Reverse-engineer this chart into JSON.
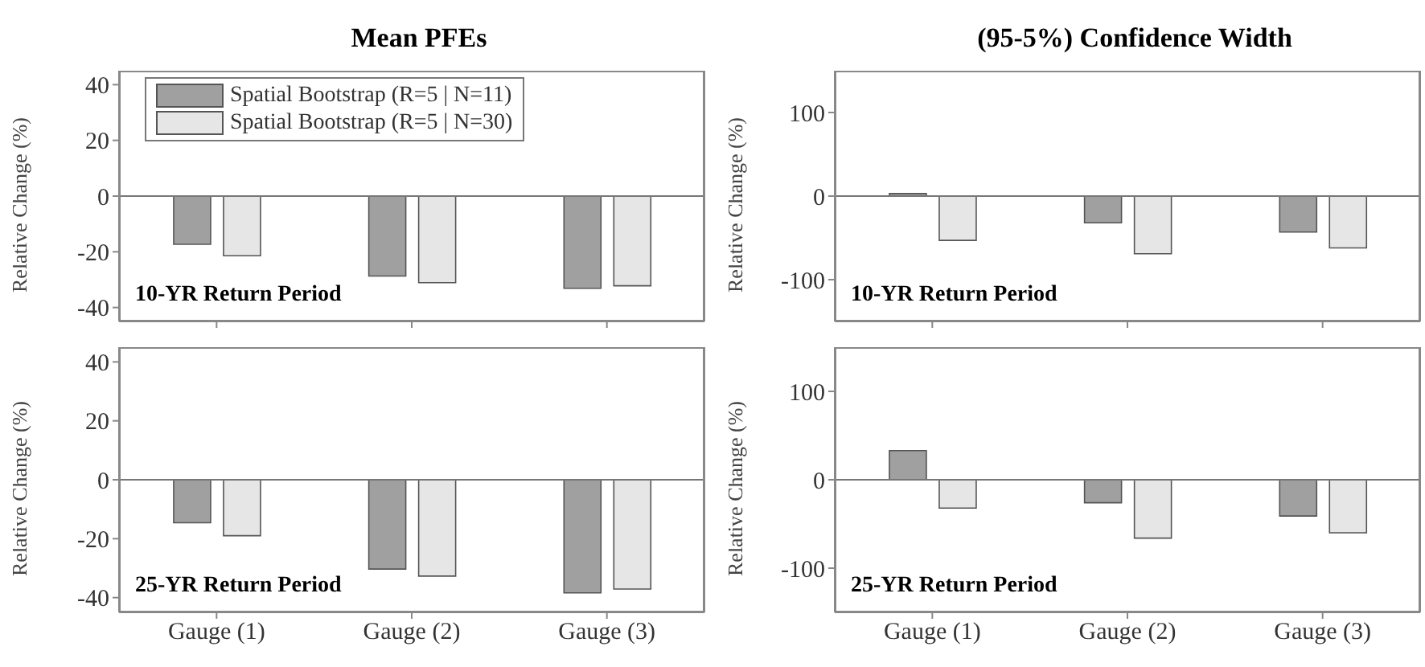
{
  "chart_data": [
    {
      "type": "bar",
      "title": "Mean PFEs",
      "ylabel": "Relative Change (%)",
      "categories": [
        null,
        null,
        null
      ],
      "series": [
        {
          "name": "Spatial Bootstrap (R=5 | N=11)",
          "color": "#a0a0a0",
          "values": [
            -17.3,
            -28.7,
            -33.1
          ]
        },
        {
          "name": "Spatial Bootstrap (R=5 | N=30)",
          "color": "#e6e6e6",
          "values": [
            -21.4,
            -31.1,
            -32.2
          ]
        }
      ],
      "ylim": [
        -45,
        45
      ],
      "yticks": [
        -40,
        -20,
        0,
        20,
        40
      ],
      "annotations": [
        "10-YR Return Period"
      ],
      "legend": "top left",
      "grid": false,
      "tick_labels": "y",
      "ref_lines": [
        {
          "axis": "y",
          "value": 0
        }
      ]
    },
    {
      "type": "bar",
      "title": "(95-5%) Confidence Width",
      "ylabel": "Relative Change (%)",
      "categories": [
        null,
        null,
        null
      ],
      "series": [
        {
          "color": "#a0a0a0",
          "values": [
            3,
            -32,
            -43
          ]
        },
        {
          "color": "#e6e6e6",
          "values": [
            -53,
            -69,
            -62
          ]
        }
      ],
      "ylim": [
        -150,
        150
      ],
      "yticks": [
        -100,
        0,
        100
      ],
      "annotations": [
        "10-YR Return Period"
      ],
      "legend": false,
      "grid": false,
      "tick_labels": "y",
      "ref_lines": [
        {
          "axis": "y",
          "value": 0
        }
      ]
    },
    {
      "type": "bar",
      "ylabel": "Relative Change (%)",
      "categories": [
        "Gauge (1)",
        "Gauge (2)",
        "Gauge (3)"
      ],
      "series": [
        {
          "color": "#a0a0a0",
          "values": [
            -14.6,
            -30.3,
            -38.4
          ]
        },
        {
          "color": "#e6e6e6",
          "values": [
            -19,
            -32.7,
            -37.1
          ]
        }
      ],
      "ylim": [
        -45,
        45
      ],
      "yticks": [
        -40,
        -20,
        0,
        20,
        40
      ],
      "annotations": [
        "25-YR Return Period"
      ],
      "legend": false,
      "grid": false,
      "ref_lines": [
        {
          "axis": "y",
          "value": 0
        }
      ]
    },
    {
      "type": "bar",
      "ylabel": "Relative Change (%)",
      "categories": [
        "Gauge (1)",
        "Gauge (2)",
        "Gauge (3)"
      ],
      "series": [
        {
          "color": "#a0a0a0",
          "values": [
            33,
            -26,
            -41
          ]
        },
        {
          "color": "#e6e6e6",
          "values": [
            -32,
            -66,
            -60
          ]
        }
      ],
      "ylim": [
        -150,
        150
      ],
      "yticks": [
        -100,
        0,
        100
      ],
      "annotations": [
        "25-YR Return Period"
      ],
      "legend": false,
      "grid": false,
      "ref_lines": [
        {
          "axis": "y",
          "value": 0
        }
      ]
    }
  ]
}
